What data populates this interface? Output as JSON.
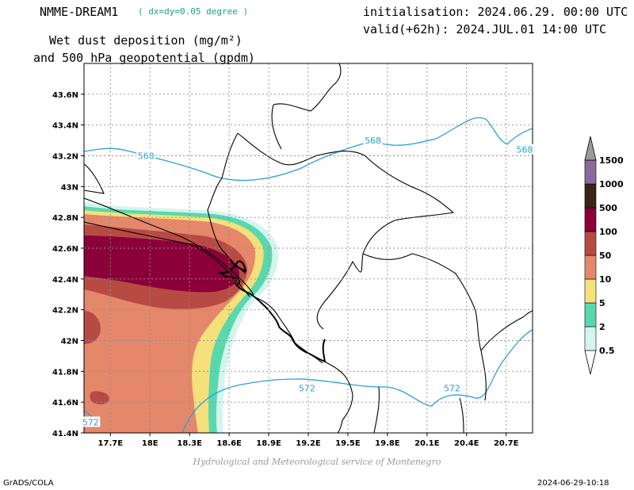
{
  "header": {
    "model": "NMME-DREAM1",
    "resolution": "( dx=dy=0.05 degree )",
    "title_line1": "Wet dust deposition (mg/m²)",
    "title_line2": "and 500 hPa geopotential (gpdm)",
    "init": "initialisation: 2024.06.29. 00:00 UTC",
    "valid": "valid(+62h): 2024.JUL.01 14:00 UTC"
  },
  "map": {
    "lat_labels": [
      "43.6N",
      "43.4N",
      "43.2N",
      "43N",
      "42.8N",
      "42.6N",
      "42.4N",
      "42.2N",
      "42N",
      "41.8N",
      "41.6N",
      "41.4N"
    ],
    "lon_labels": [
      "17.7E",
      "18E",
      "18.3E",
      "18.6E",
      "18.9E",
      "19.2E",
      "19.5E",
      "19.8E",
      "20.1E",
      "20.4E",
      "20.7E"
    ],
    "contour_labels": [
      {
        "text": "568",
        "lat": 43.2,
        "lon": 17.97
      },
      {
        "text": "568",
        "lat": 43.3,
        "lon": 19.69
      },
      {
        "text": "568",
        "lat": 43.24,
        "lon": 20.84
      },
      {
        "text": "572",
        "lat": 41.69,
        "lon": 19.19
      },
      {
        "text": "572",
        "lat": 41.69,
        "lon": 20.29
      },
      {
        "text": "572",
        "lat": 41.47,
        "lon": 17.55
      }
    ],
    "contour_color": "#2a9fd8",
    "border_color": "#000000"
  },
  "legend": {
    "levels": [
      "0.5",
      "2",
      "5",
      "10",
      "50",
      "100",
      "500",
      "1000",
      "1500"
    ],
    "colors": [
      "#d4f5ef",
      "#5ad8ad",
      "#f5e07c",
      "#e5876a",
      "#b84a44",
      "#8b0038",
      "#3a2418",
      "#8a6a9c"
    ],
    "arrow_color": "#9a9a9a"
  },
  "footer": {
    "credit": "Hydrological and Meteorological service of Montenegro",
    "software": "GrADS/COLA",
    "timestamp": "2024-06-29-10:18"
  }
}
